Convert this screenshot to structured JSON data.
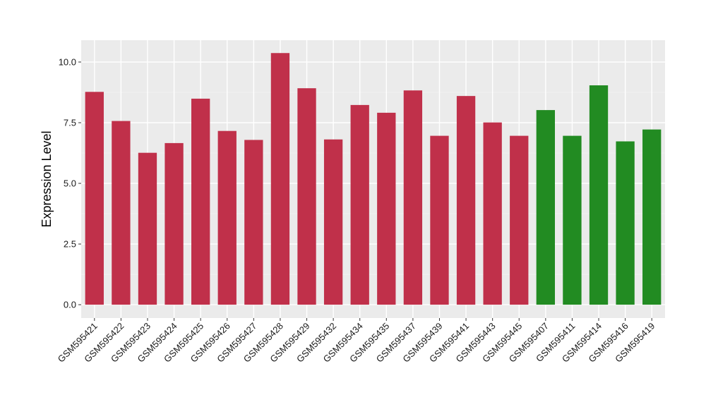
{
  "chart_data": {
    "type": "bar",
    "title": "",
    "xlabel": "",
    "ylabel": "Expression Level",
    "ylim": [
      -0.55,
      10.9
    ],
    "yticks": [
      0.0,
      2.5,
      5.0,
      7.5,
      10.0
    ],
    "ytick_labels": [
      "0.0",
      "2.5",
      "5.0",
      "7.5",
      "10.0"
    ],
    "grid": true,
    "legend": "none",
    "categories": [
      "GSM595421",
      "GSM595422",
      "GSM595423",
      "GSM595424",
      "GSM595425",
      "GSM595426",
      "GSM595427",
      "GSM595428",
      "GSM595429",
      "GSM595432",
      "GSM595434",
      "GSM595435",
      "GSM595437",
      "GSM595439",
      "GSM595441",
      "GSM595443",
      "GSM595445",
      "GSM595407",
      "GSM595411",
      "GSM595414",
      "GSM595416",
      "GSM595419"
    ],
    "values": [
      8.77,
      7.57,
      6.26,
      6.66,
      8.49,
      7.16,
      6.79,
      10.37,
      8.92,
      6.81,
      8.23,
      7.91,
      8.83,
      6.96,
      8.6,
      7.51,
      6.96,
      8.02,
      6.96,
      9.04,
      6.73,
      7.22
    ],
    "bar_groups": [
      "a",
      "a",
      "a",
      "a",
      "a",
      "a",
      "a",
      "a",
      "a",
      "a",
      "a",
      "a",
      "a",
      "a",
      "a",
      "a",
      "a",
      "b",
      "b",
      "b",
      "b",
      "b"
    ],
    "colors": {
      "a": "#c0304a",
      "b": "#228b22",
      "panel_background": "#ebebeb",
      "grid_major": "#ffffff",
      "grid_minor": "#f5f5f5"
    }
  }
}
